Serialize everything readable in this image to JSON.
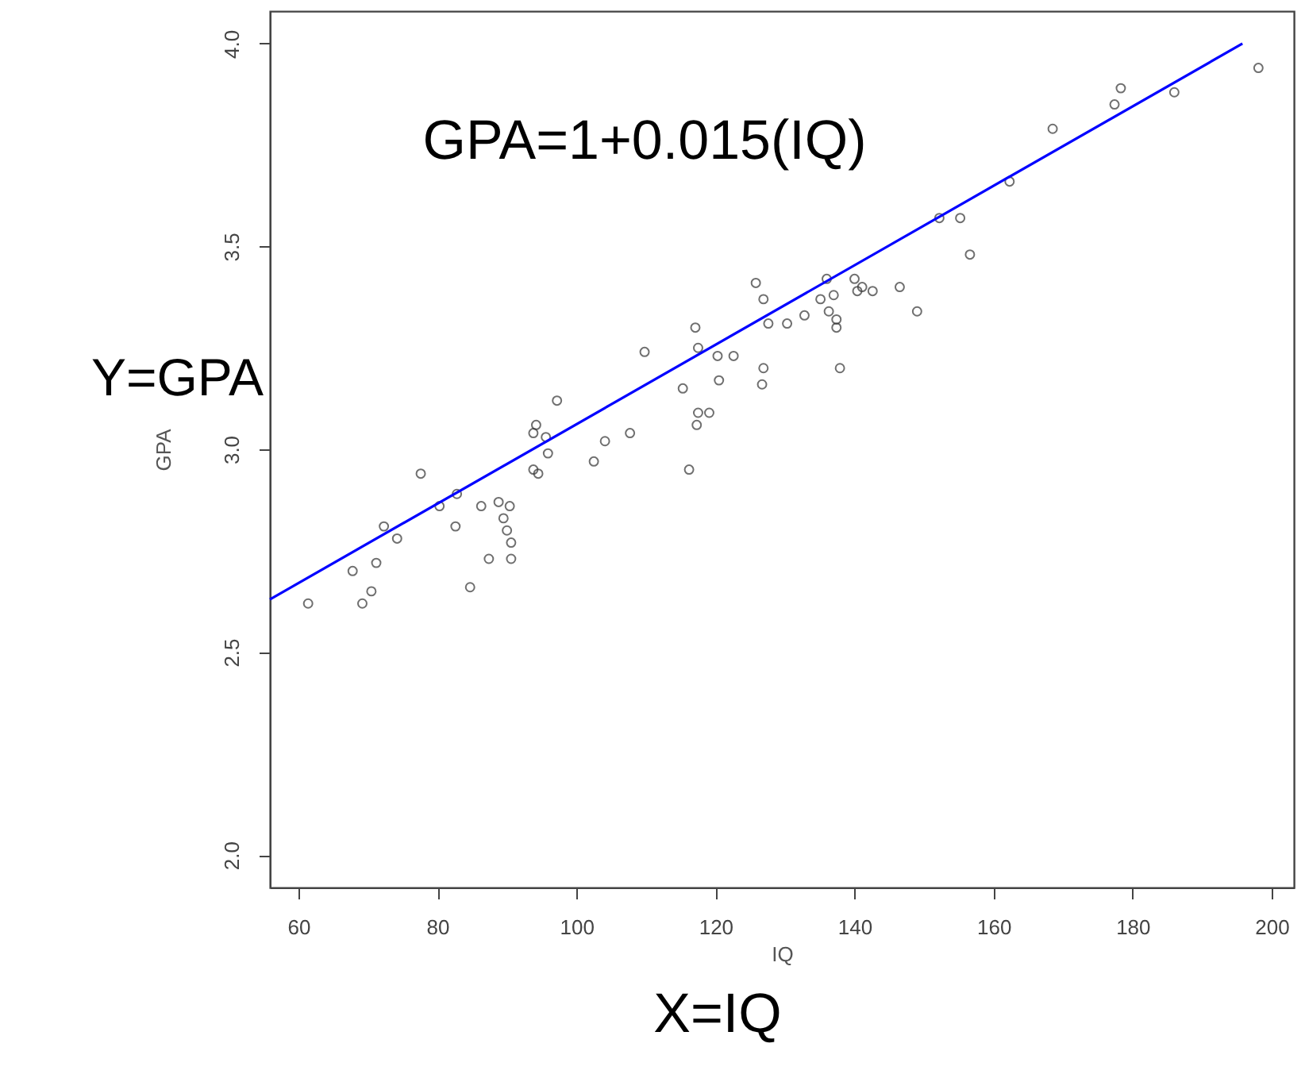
{
  "chart_data": {
    "type": "scatter",
    "xlabel": "IQ",
    "ylabel": "GPA",
    "annotations": [
      "GPA=1+0.015(IQ)",
      "Y=GPA",
      "X=IQ"
    ],
    "xlim": [
      55.9,
      203.2
    ],
    "ylim": [
      1.92,
      4.08
    ],
    "xticks": [
      60,
      80,
      100,
      120,
      140,
      160,
      180,
      200
    ],
    "yticks": [
      {
        "value": 2,
        "label": "2.0"
      },
      {
        "value": 2.5,
        "label": "2.5"
      },
      {
        "value": 3,
        "label": "3.0"
      },
      {
        "value": 3.5,
        "label": "3.5"
      },
      {
        "value": 4,
        "label": "4.0"
      }
    ],
    "grid": false,
    "series": [
      {
        "type": "scatter",
        "color": "#333333",
        "marker": "circle",
        "x": [
          61.4,
          67.8,
          69.2,
          70.5,
          71.2,
          72.3,
          74.2,
          77.6,
          80.3,
          82.8,
          82.6,
          84.7,
          86.3,
          87.4,
          88.8,
          89.5,
          90.0,
          90.4,
          90.6,
          90.6,
          93.8,
          94.5,
          93.8,
          94.2,
          95.6,
          95.9,
          97.2,
          102.5,
          104.1,
          107.7,
          109.8,
          115.3,
          116.2,
          117.1,
          117.5,
          117.3,
          117.5,
          119.1,
          120.3,
          120.5,
          122.6,
          125.8,
          126.7,
          126.9,
          126.9,
          127.6,
          130.3,
          132.8,
          135.1,
          136.0,
          136.3,
          137.0,
          137.4,
          137.4,
          137.9,
          140.0,
          140.4,
          141.1,
          142.6,
          146.5,
          149.0,
          152.2,
          155.2,
          156.6,
          162.3,
          168.5,
          177.4,
          178.3,
          186.0,
          198.1
        ],
        "values": [
          2.62,
          2.7,
          2.62,
          2.65,
          2.72,
          2.81,
          2.78,
          2.94,
          2.86,
          2.89,
          2.81,
          2.66,
          2.86,
          2.73,
          2.87,
          2.83,
          2.8,
          2.86,
          2.77,
          2.73,
          2.95,
          2.94,
          3.04,
          3.06,
          3.03,
          2.99,
          3.12,
          2.97,
          3.02,
          3.04,
          3.24,
          3.15,
          2.95,
          3.3,
          3.25,
          3.06,
          3.09,
          3.09,
          3.23,
          3.17,
          3.23,
          3.41,
          3.16,
          3.2,
          3.37,
          3.31,
          3.31,
          3.33,
          3.37,
          3.42,
          3.34,
          3.38,
          3.32,
          3.3,
          3.2,
          3.42,
          3.39,
          3.4,
          3.39,
          3.4,
          3.34,
          3.57,
          3.57,
          3.48,
          3.66,
          3.79,
          3.85,
          3.89,
          3.88,
          3.94
        ]
      },
      {
        "type": "line",
        "color": "#0000ff",
        "x": [
          55.9,
          195.8
        ],
        "values": [
          2.63,
          4.0
        ]
      }
    ]
  }
}
